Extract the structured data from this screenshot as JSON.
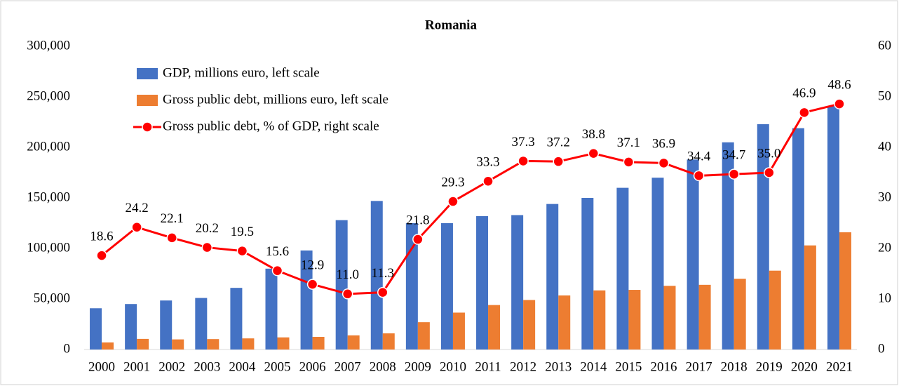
{
  "chart_data": {
    "type": "bar-line",
    "title": "Romania",
    "categories": [
      "2000",
      "2001",
      "2002",
      "2003",
      "2004",
      "2005",
      "2006",
      "2007",
      "2008",
      "2009",
      "2010",
      "2011",
      "2012",
      "2013",
      "2014",
      "2015",
      "2016",
      "2017",
      "2018",
      "2019",
      "2020",
      "2021"
    ],
    "series": [
      {
        "name": "GDP, millions euro, left scale",
        "color": "#4472c4",
        "type": "bar",
        "values": [
          40800,
          45000,
          48500,
          51000,
          61000,
          80000,
          98000,
          128000,
          147000,
          125000,
          125000,
          132000,
          133000,
          144000,
          150000,
          160000,
          170000,
          188000,
          205000,
          223000,
          219000,
          241000
        ]
      },
      {
        "name": "Gross public debt, millions euro, left scale",
        "color": "#ed7d31",
        "type": "bar",
        "values": [
          7000,
          10500,
          10000,
          10300,
          11000,
          12000,
          12500,
          14000,
          16000,
          27000,
          36500,
          44000,
          49000,
          53500,
          58500,
          59000,
          63000,
          64000,
          70000,
          78000,
          103000,
          116000
        ]
      },
      {
        "name": "Gross public debt, % of GDP, right scale",
        "color": "#ff0000",
        "type": "line",
        "axis": "y2",
        "values": [
          18.6,
          24.2,
          22.1,
          20.2,
          19.5,
          15.6,
          12.9,
          11.0,
          11.3,
          21.8,
          29.3,
          33.3,
          37.3,
          37.2,
          38.8,
          37.1,
          36.9,
          34.4,
          34.7,
          35.0,
          46.9,
          48.6
        ],
        "value_labels": [
          "18.6",
          "24.2",
          "22.1",
          "20.2",
          "19.5",
          "15.6",
          "12.9",
          "11.0",
          "11.3",
          "21.8",
          "29.3",
          "33.3",
          "37.3",
          "37.2",
          "38.8",
          "37.1",
          "36.9",
          "34.4",
          "34.7",
          "35.0",
          "46.9",
          "48.6"
        ]
      }
    ],
    "ylim": [
      0,
      300000
    ],
    "yticks": [
      0,
      {
        "value": 50000,
        "label": "50,000"
      },
      {
        "value": 100000,
        "label": "100,000"
      },
      {
        "value": 150000,
        "label": "150,000"
      },
      {
        "value": 200000,
        "label": "200,000"
      },
      {
        "value": 250000,
        "label": "250,000"
      },
      {
        "value": 300000,
        "label": "300,000"
      }
    ],
    "y2lim": [
      0,
      60
    ],
    "y2ticks": [
      0,
      10,
      20,
      30,
      40,
      50,
      60
    ],
    "legend": "upper left"
  }
}
